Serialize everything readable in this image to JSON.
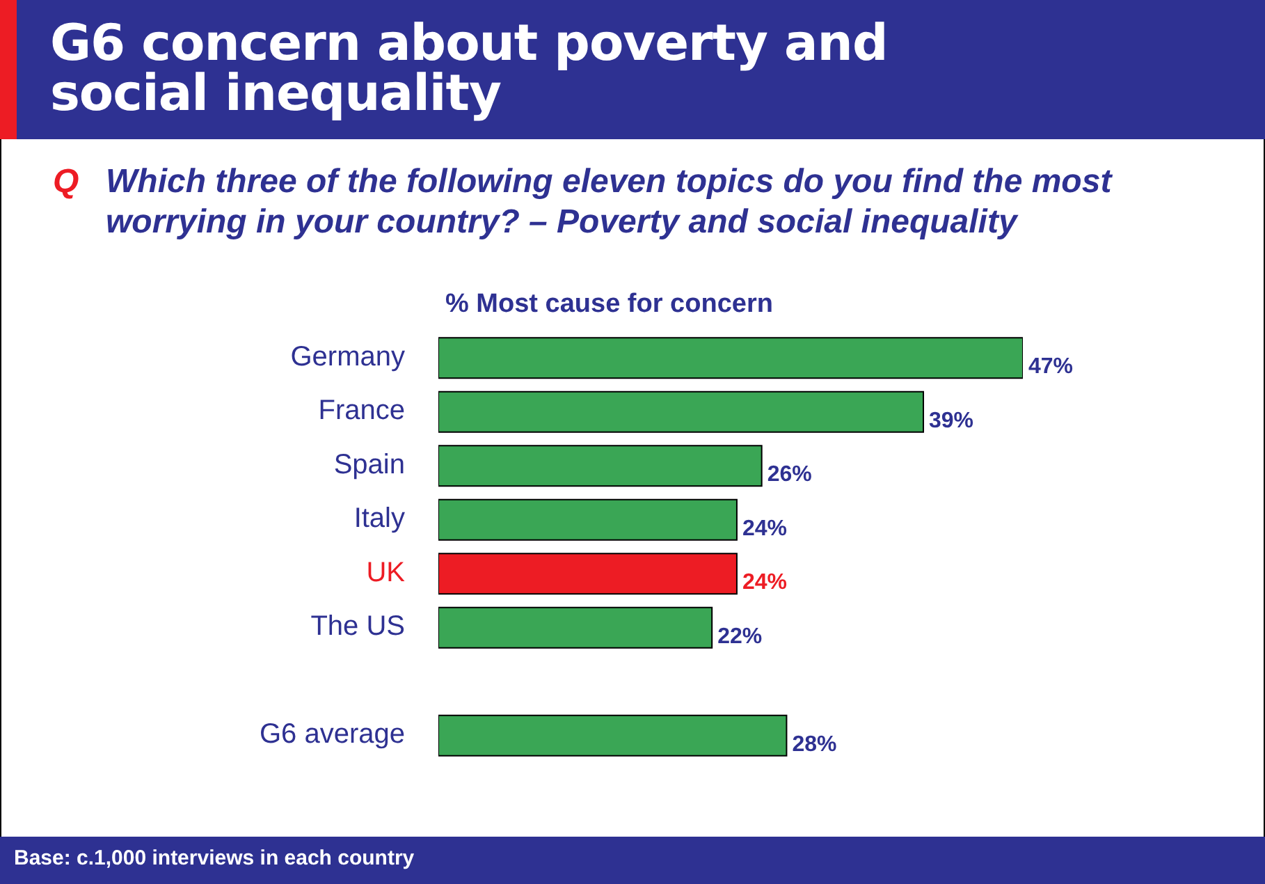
{
  "chart_data": {
    "type": "bar",
    "orientation": "horizontal",
    "title": "G6 concern about poverty and social inequality",
    "subtitle": "Q Which three of the following eleven topics do you find the most worrying in your country? – Poverty and social inequality",
    "xlabel": "% Most cause for concern",
    "categories": [
      "Germany",
      "France",
      "Spain",
      "Italy",
      "UK",
      "The US",
      null,
      "G6 average"
    ],
    "values": [
      47,
      39,
      26,
      24,
      24,
      22,
      null,
      28
    ],
    "value_labels": [
      "47%",
      "39%",
      "26%",
      "24%",
      "24%",
      "22%",
      null,
      "28%"
    ],
    "colors": [
      "#3aa655",
      "#3aa655",
      "#3aa655",
      "#3aa655",
      "#ed1c24",
      "#3aa655",
      "#3aa655",
      "#3aa655"
    ],
    "tick_labels": "y",
    "grid": false,
    "legend": false,
    "annotations": [
      "Base: c.1,000 interviews in each country"
    ]
  }
}
